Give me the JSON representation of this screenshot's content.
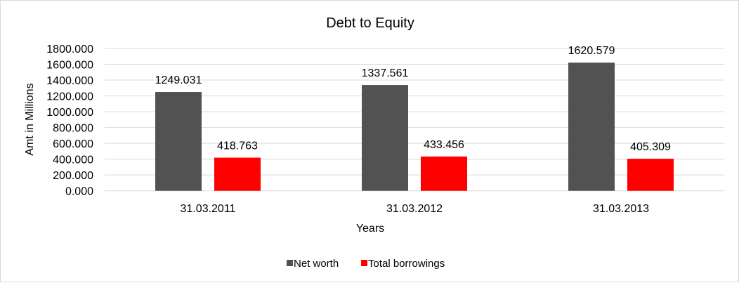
{
  "chart_data": {
    "type": "bar",
    "title": "Debt to Equity",
    "xlabel": "Years",
    "ylabel": "Amt in Millions",
    "categories": [
      "31.03.2011",
      "31.03.2012",
      "31.03.2013"
    ],
    "series": [
      {
        "name": "Net worth",
        "values": [
          1249.031,
          1337.561,
          1620.579
        ],
        "color": "#525252"
      },
      {
        "name": "Total borrowings",
        "values": [
          418.763,
          433.456,
          405.309
        ],
        "color": "#ff0000"
      }
    ],
    "data_labels": [
      [
        "1249.031",
        "1337.561",
        "1620.579"
      ],
      [
        "418.763",
        "433.456",
        "405.309"
      ]
    ],
    "ylim": [
      0,
      1800
    ],
    "yticks": [
      "0.000",
      "200.000",
      "400.000",
      "600.000",
      "800.000",
      "1000.000",
      "1200.000",
      "1400.000",
      "1600.000",
      "1800.000"
    ],
    "grid": true,
    "legend_placement": "bottom"
  }
}
